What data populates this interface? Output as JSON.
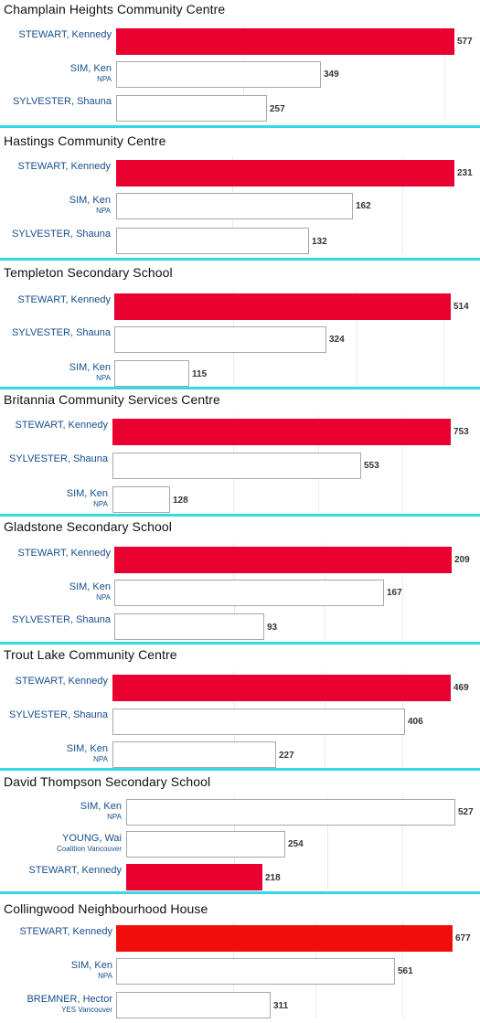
{
  "colors": {
    "winner": "#e8002f",
    "winner_alt": "#f20d0d",
    "outline": "#a8a8a8",
    "separator": "#33d9e6",
    "label": "#164e8c"
  },
  "chart_data": [
    {
      "type": "bar",
      "title": "Champlain Heights Community Centre",
      "series": [
        {
          "values": [
            577,
            349,
            257
          ]
        }
      ],
      "categories": [
        "STEWART, Kennedy",
        "SIM, Ken",
        "SYLVESTER, Shauna"
      ],
      "parties": [
        "",
        "NPA",
        ""
      ],
      "filled": [
        true,
        false,
        false
      ]
    },
    {
      "type": "bar",
      "title": "Hastings Community Centre",
      "series": [
        {
          "values": [
            231,
            162,
            132
          ]
        }
      ],
      "categories": [
        "STEWART, Kennedy",
        "SIM, Ken",
        "SYLVESTER, Shauna"
      ],
      "parties": [
        "",
        "NPA",
        ""
      ],
      "filled": [
        true,
        false,
        false
      ]
    },
    {
      "type": "bar",
      "title": "Templeton Secondary School",
      "series": [
        {
          "values": [
            514,
            324,
            115
          ]
        }
      ],
      "categories": [
        "STEWART, Kennedy",
        "SYLVESTER, Shauna",
        "SIM, Ken"
      ],
      "parties": [
        "",
        "",
        "NPA"
      ],
      "filled": [
        true,
        false,
        false
      ]
    },
    {
      "type": "bar",
      "title": "Britannia Community Services Centre",
      "series": [
        {
          "values": [
            753,
            553,
            128
          ]
        }
      ],
      "categories": [
        "STEWART, Kennedy",
        "SYLVESTER, Shauna",
        "SIM, Ken"
      ],
      "parties": [
        "",
        "",
        "NPA"
      ],
      "filled": [
        true,
        false,
        false
      ]
    },
    {
      "type": "bar",
      "title": "Gladstone Secondary School",
      "series": [
        {
          "values": [
            209,
            167,
            93
          ]
        }
      ],
      "categories": [
        "STEWART, Kennedy",
        "SIM, Ken",
        "SYLVESTER, Shauna"
      ],
      "parties": [
        "",
        "NPA",
        ""
      ],
      "filled": [
        true,
        false,
        false
      ]
    },
    {
      "type": "bar",
      "title": "Trout Lake Community Centre",
      "series": [
        {
          "values": [
            469,
            406,
            227
          ]
        }
      ],
      "categories": [
        "STEWART, Kennedy",
        "SYLVESTER, Shauna",
        "SIM, Ken"
      ],
      "parties": [
        "",
        "",
        "NPA"
      ],
      "filled": [
        true,
        false,
        false
      ]
    },
    {
      "type": "bar",
      "title": "David Thompson Secondary School",
      "series": [
        {
          "values": [
            527,
            254,
            218
          ]
        }
      ],
      "categories": [
        "SIM, Ken",
        "YOUNG, Wai",
        "STEWART, Kennedy"
      ],
      "parties": [
        "NPA",
        "Coalition Vancouver",
        ""
      ],
      "filled": [
        false,
        false,
        true
      ]
    },
    {
      "type": "bar",
      "title": "Collingwood Neighbourhood House",
      "series": [
        {
          "values": [
            677,
            561,
            311
          ]
        }
      ],
      "categories": [
        "STEWART, Kennedy",
        "SIM, Ken",
        "BREMNER, Hector"
      ],
      "parties": [
        "",
        "NPA",
        "YES Vancouver"
      ],
      "filled": [
        true,
        false,
        false
      ]
    }
  ]
}
